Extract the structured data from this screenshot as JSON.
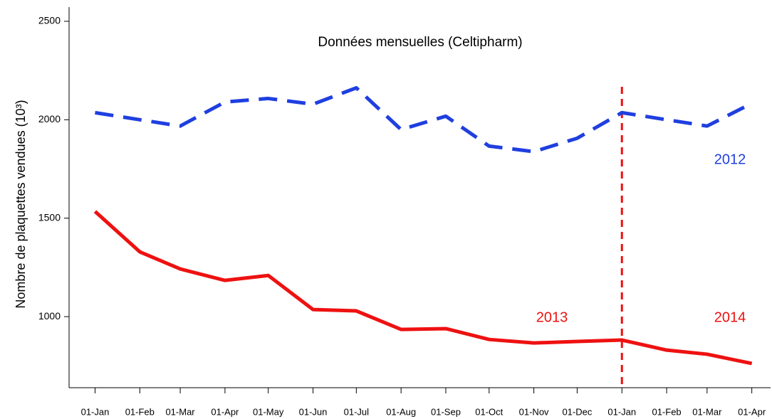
{
  "chart_data": {
    "type": "line",
    "title": "Données mensuelles (Celtipharm)",
    "y_label": "Nombre de plaquettes vendues (10³)",
    "x": [
      0,
      31,
      59,
      90,
      120,
      151,
      181,
      212,
      243,
      273,
      304,
      334,
      365,
      396,
      424,
      455
    ],
    "xlim": [
      -18,
      468
    ],
    "xticks": [
      {
        "value": 0,
        "label": "01-Jan"
      },
      {
        "value": 31,
        "label": "01-Feb"
      },
      {
        "value": 59,
        "label": "01-Mar"
      },
      {
        "value": 90,
        "label": "01-Apr"
      },
      {
        "value": 120,
        "label": "01-May"
      },
      {
        "value": 151,
        "label": "01-Jun"
      },
      {
        "value": 181,
        "label": "01-Jul"
      },
      {
        "value": 212,
        "label": "01-Aug"
      },
      {
        "value": 243,
        "label": "01-Sep"
      },
      {
        "value": 273,
        "label": "01-Oct"
      },
      {
        "value": 304,
        "label": "01-Nov"
      },
      {
        "value": 334,
        "label": "01-Dec"
      },
      {
        "value": 365,
        "label": "01-Jan"
      },
      {
        "value": 396,
        "label": "01-Feb"
      },
      {
        "value": 424,
        "label": "01-Mar"
      },
      {
        "value": 455,
        "label": "01-Apr"
      }
    ],
    "ylim": [
      639,
      2572
    ],
    "yticks": [
      1000,
      1500,
      2000,
      2500
    ],
    "series": [
      {
        "color": "#1f3fe0",
        "dashed": true,
        "values": [
          2036,
          2000,
          1968,
          2090,
          2108,
          2079,
          2162,
          1950,
          2018,
          1866,
          1838,
          1906,
          2036,
          2000,
          1968,
          2083
        ]
      },
      {
        "color": "#ee1111",
        "dashed": false,
        "values": [
          1534,
          1329,
          1242,
          1184,
          1209,
          1036,
          1029,
          935,
          939,
          884,
          866,
          874,
          881,
          830,
          809,
          762
        ]
      }
    ],
    "vline": {
      "x": 365,
      "color": "#ee1111"
    },
    "annotations": [
      {
        "text": "2012",
        "color": "#1f3fe0"
      },
      {
        "text": "2013",
        "color": "#ee1111"
      },
      {
        "text": "2014",
        "color": "#ee1111"
      }
    ]
  }
}
